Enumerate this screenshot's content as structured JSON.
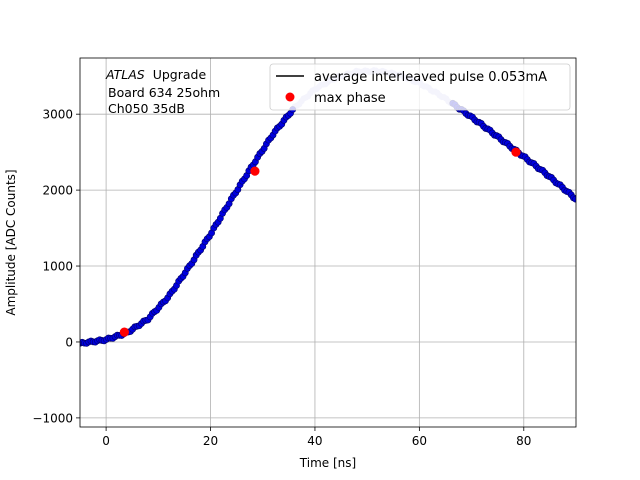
{
  "chart_data": {
    "type": "scatter",
    "xlabel": "Time [ns]",
    "ylabel": "Amplitude [ADC Counts]",
    "xlim": [
      -5,
      90
    ],
    "ylim": [
      -1120,
      3740
    ],
    "xticks": [
      0,
      20,
      40,
      60,
      80
    ],
    "yticks": [
      -1000,
      0,
      1000,
      2000,
      3000
    ],
    "grid": true,
    "legend_placement": "top-right",
    "annotation": {
      "experiment": "ATLAS",
      "tag": "Upgrade",
      "line2": "Board 634 25ohm",
      "line3": "Ch050 35dB"
    },
    "series": [
      {
        "name": "average interleaved pulse 0.053mA",
        "legend_marker": "line",
        "color": "#000000",
        "points_color": "#0000dd",
        "points_edge": "#000066",
        "faded_color": "#c8c8f0",
        "faded_range": [
          36,
          66
        ],
        "pulse_curve": [
          [
            -5,
            -20
          ],
          [
            0,
            30
          ],
          [
            4,
            120
          ],
          [
            8,
            300
          ],
          [
            12,
            600
          ],
          [
            16,
            1000
          ],
          [
            20,
            1420
          ],
          [
            24,
            1880
          ],
          [
            28,
            2320
          ],
          [
            32,
            2740
          ],
          [
            36,
            3080
          ],
          [
            40,
            3330
          ],
          [
            44,
            3480
          ],
          [
            48,
            3560
          ],
          [
            52,
            3570
          ],
          [
            56,
            3520
          ],
          [
            60,
            3410
          ],
          [
            64,
            3250
          ],
          [
            68,
            3060
          ],
          [
            72,
            2860
          ],
          [
            76,
            2650
          ],
          [
            80,
            2440
          ],
          [
            84,
            2230
          ],
          [
            88,
            2000
          ],
          [
            90,
            1880
          ]
        ]
      },
      {
        "name": "max phase",
        "legend_marker": "dot",
        "color": "#ff0000",
        "points": [
          [
            3.5,
            130
          ],
          [
            28.5,
            2250
          ],
          [
            78.5,
            2500
          ]
        ]
      }
    ]
  }
}
